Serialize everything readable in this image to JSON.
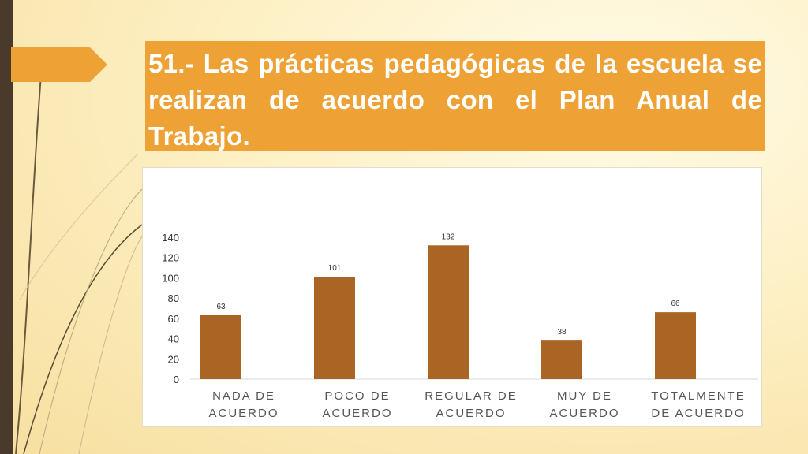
{
  "slide": {
    "title": "51.- Las prácticas pedagógicas de la escuela se realizan de acuerdo con el Plan Anual de Trabajo."
  },
  "colors": {
    "bar": "#aa6424",
    "title_bg": "#eea236",
    "accent_dark": "#4a3a2c"
  },
  "chart_data": {
    "type": "bar",
    "categories": [
      [
        "NADA DE",
        "ACUERDO"
      ],
      [
        "POCO DE",
        "ACUERDO"
      ],
      [
        "REGULAR DE",
        "ACUERDO"
      ],
      [
        "MUY DE",
        "ACUERDO"
      ],
      [
        "TOTALMENTE",
        "DE ACUERDO"
      ]
    ],
    "values": [
      63,
      101,
      132,
      38,
      66
    ],
    "ylim": [
      0,
      140
    ],
    "yticks": [
      0,
      20,
      40,
      60,
      80,
      100,
      120,
      140
    ],
    "data_labels": true,
    "grid": false,
    "legend": "none"
  }
}
